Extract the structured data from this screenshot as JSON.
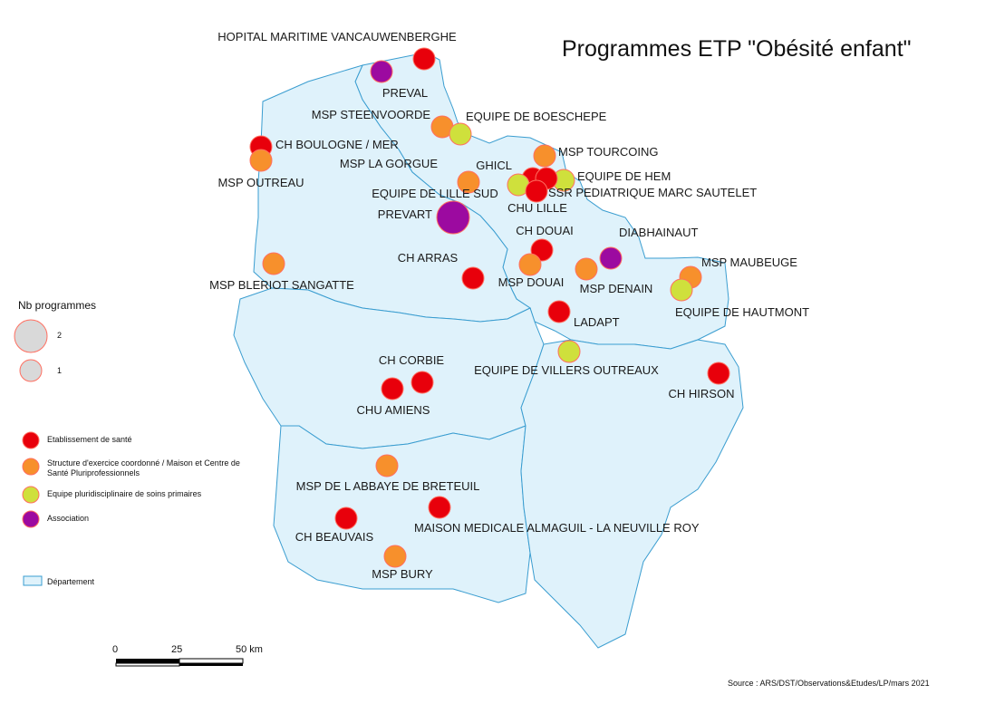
{
  "title": "Programmes ETP \"Obésité enfant\"",
  "legend": {
    "size_title": "Nb programmes",
    "size_entries": [
      {
        "label": "2",
        "value": 2
      },
      {
        "label": "1",
        "value": 1
      }
    ],
    "categories": [
      {
        "key": "etab",
        "label": "Etablissement de santé",
        "color": "#e8000b"
      },
      {
        "key": "msp",
        "label": "Structure d'exercice coordonné / Maison et Centre de Santé Pluriprofessionnels",
        "color": "#f7902c"
      },
      {
        "key": "equipe",
        "label": "Equipe pluridisciplinaire de soins primaires",
        "color": "#cfe03c"
      },
      {
        "key": "asso",
        "label": "Association",
        "color": "#9c0aa0"
      }
    ],
    "department": "Département"
  },
  "colors": {
    "department_fill": "#dff2fb",
    "department_stroke": "#3a9dd0",
    "circle_stroke": "#ff6f61"
  },
  "scale": {
    "ticks": [
      "0",
      "25",
      "50 km"
    ]
  },
  "source": "Source : ARS/DST/Observations&Etudes/LP/mars 2021",
  "sites": [
    {
      "name": "HOPITAL MARITIME VANCAUWENBERGHE",
      "cat": "etab",
      "n": 1
    },
    {
      "name": "PREVAL",
      "cat": "asso",
      "n": 1
    },
    {
      "name": "MSP STEENVOORDE",
      "cat": "msp",
      "n": 1
    },
    {
      "name": "EQUIPE DE BOESCHEPE",
      "cat": "equipe",
      "n": 1
    },
    {
      "name": "CH BOULOGNE / MER",
      "cat": "etab",
      "n": 1
    },
    {
      "name": "MSP OUTREAU",
      "cat": "msp",
      "n": 1
    },
    {
      "name": "MSP TOURCOING",
      "cat": "msp",
      "n": 1
    },
    {
      "name": "MSP LA GORGUE",
      "cat": "msp",
      "n": 1
    },
    {
      "name": "GHICL",
      "cat": "etab",
      "n": 1
    },
    {
      "name": "EQUIPE DE HEM",
      "cat": "equipe",
      "n": 1
    },
    {
      "name": "EQUIPE DE LILLE SUD",
      "cat": "equipe",
      "n": 1
    },
    {
      "name": "SSR PEDIATRIQUE MARC SAUTELET",
      "cat": "etab",
      "n": 1
    },
    {
      "name": "CHU LILLE",
      "cat": "etab",
      "n": 1
    },
    {
      "name": "PREVART",
      "cat": "asso",
      "n": 2
    },
    {
      "name": "CH DOUAI",
      "cat": "etab",
      "n": 1
    },
    {
      "name": "DIABHAINAUT",
      "cat": "asso",
      "n": 1
    },
    {
      "name": "CH ARRAS",
      "cat": "etab",
      "n": 1
    },
    {
      "name": "MSP DOUAI",
      "cat": "msp",
      "n": 1
    },
    {
      "name": "MSP MAUBEUGE",
      "cat": "msp",
      "n": 1
    },
    {
      "name": "MSP BLERIOT SANGATTE",
      "cat": "msp",
      "n": 1
    },
    {
      "name": "MSP DENAIN",
      "cat": "msp",
      "n": 1
    },
    {
      "name": "EQUIPE DE HAUTMONT",
      "cat": "equipe",
      "n": 1
    },
    {
      "name": "LADAPT",
      "cat": "etab",
      "n": 1
    },
    {
      "name": "CH CORBIE",
      "cat": "etab",
      "n": 1
    },
    {
      "name": "EQUIPE DE VILLERS OUTREAUX",
      "cat": "equipe",
      "n": 1
    },
    {
      "name": "CH HIRSON",
      "cat": "etab",
      "n": 1
    },
    {
      "name": "CHU AMIENS",
      "cat": "etab",
      "n": 1
    },
    {
      "name": "MSP DE L ABBAYE DE BRETEUIL",
      "cat": "msp",
      "n": 1
    },
    {
      "name": "MAISON MEDICALE ALMAGUIL - LA NEUVILLE ROY",
      "cat": "etab",
      "n": 1
    },
    {
      "name": "CH BEAUVAIS",
      "cat": "etab",
      "n": 1
    },
    {
      "name": "MSP BURY",
      "cat": "msp",
      "n": 1
    }
  ]
}
